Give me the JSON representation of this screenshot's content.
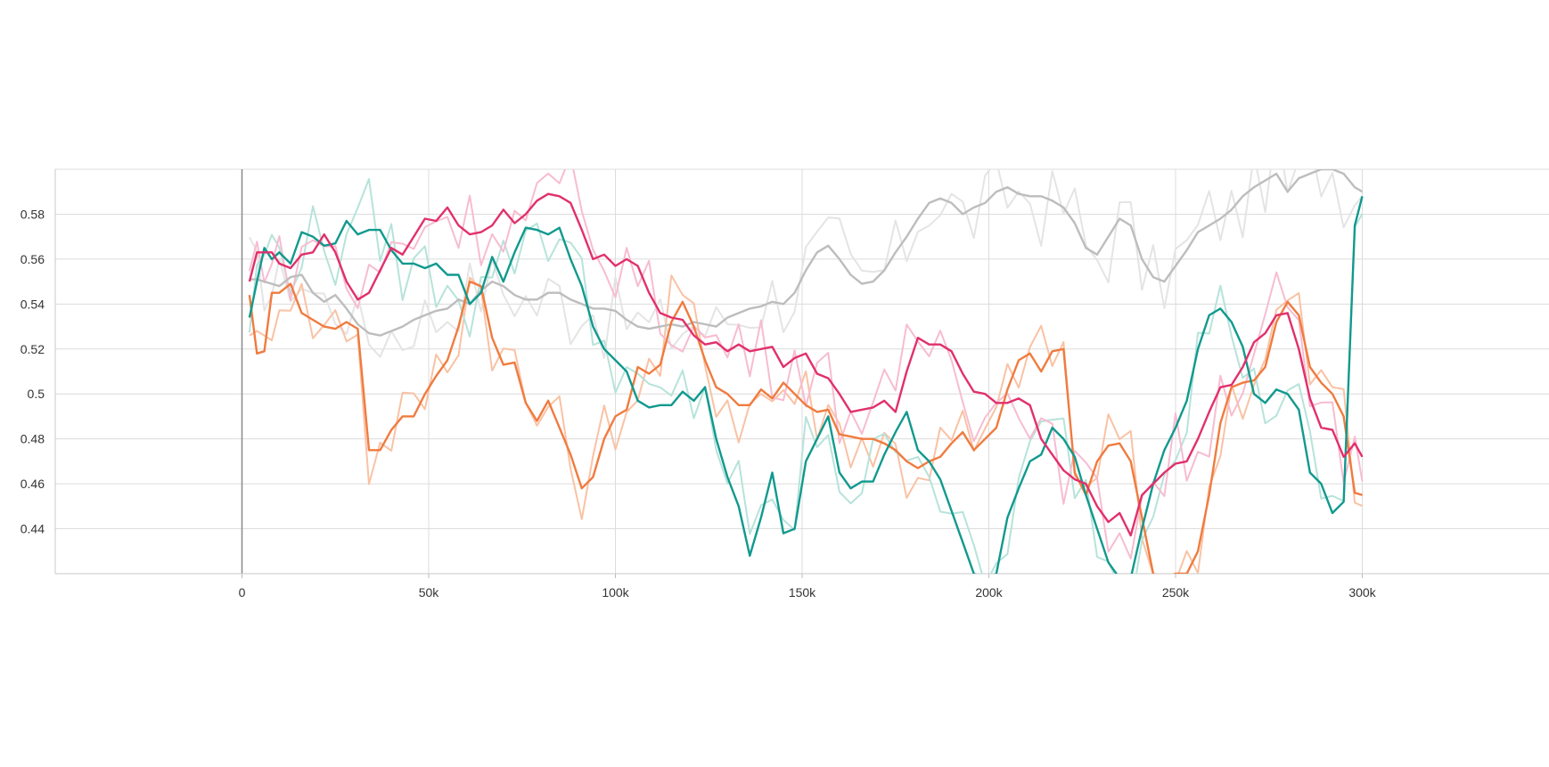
{
  "chart_data": {
    "type": "line",
    "title": "",
    "xlabel": "",
    "ylabel": "",
    "xlim": [
      -50000,
      350000
    ],
    "ylim": [
      0.42,
      0.6
    ],
    "x_ticks": [
      0,
      50000,
      100000,
      150000,
      200000,
      250000,
      300000
    ],
    "x_tick_labels": [
      "0",
      "50k",
      "100k",
      "150k",
      "200k",
      "250k",
      "300k"
    ],
    "y_ticks": [
      0.44,
      0.46,
      0.48,
      0.5,
      0.52,
      0.54,
      0.56,
      0.58
    ],
    "y_tick_labels": [
      "0.44",
      "0.46",
      "0.48",
      "0.5",
      "0.52",
      "0.54",
      "0.56",
      "0.58"
    ],
    "grid": true,
    "legend": "none",
    "x": [
      2000,
      4000,
      6000,
      8000,
      10000,
      13000,
      16000,
      19000,
      22000,
      25000,
      28000,
      31000,
      34000,
      37000,
      40000,
      43000,
      46000,
      49000,
      52000,
      55000,
      58000,
      61000,
      64000,
      67000,
      70000,
      73000,
      76000,
      79000,
      82000,
      85000,
      88000,
      91000,
      94000,
      97000,
      100000,
      103000,
      106000,
      109000,
      112000,
      115000,
      118000,
      121000,
      124000,
      127000,
      130000,
      133000,
      136000,
      139000,
      142000,
      145000,
      148000,
      151000,
      154000,
      157000,
      160000,
      163000,
      166000,
      169000,
      172000,
      175000,
      178000,
      181000,
      184000,
      187000,
      190000,
      193000,
      196000,
      199000,
      202000,
      205000,
      208000,
      211000,
      214000,
      217000,
      220000,
      223000,
      226000,
      229000,
      232000,
      235000,
      238000,
      241000,
      244000,
      247000,
      250000,
      253000,
      256000,
      259000,
      262000,
      265000,
      268000,
      271000,
      274000,
      277000,
      280000,
      283000,
      286000,
      289000,
      292000,
      295000,
      298000,
      300000
    ],
    "series": [
      {
        "color": "#bdbdbd",
        "raw_color": "#e4e4e4",
        "values": [
          0.551,
          0.551,
          0.55,
          0.549,
          0.548,
          0.552,
          0.553,
          0.545,
          0.541,
          0.544,
          0.538,
          0.531,
          0.527,
          0.526,
          0.528,
          0.53,
          0.533,
          0.535,
          0.537,
          0.538,
          0.542,
          0.54,
          0.546,
          0.55,
          0.548,
          0.544,
          0.542,
          0.542,
          0.545,
          0.545,
          0.542,
          0.54,
          0.538,
          0.538,
          0.537,
          0.533,
          0.53,
          0.529,
          0.53,
          0.531,
          0.53,
          0.532,
          0.531,
          0.53,
          0.534,
          0.536,
          0.538,
          0.539,
          0.541,
          0.54,
          0.545,
          0.555,
          0.563,
          0.566,
          0.56,
          0.553,
          0.549,
          0.55,
          0.555,
          0.563,
          0.57,
          0.578,
          0.585,
          0.587,
          0.585,
          0.58,
          0.583,
          0.585,
          0.59,
          0.592,
          0.589,
          0.588,
          0.588,
          0.586,
          0.583,
          0.576,
          0.565,
          0.562,
          0.57,
          0.578,
          0.575,
          0.56,
          0.552,
          0.55,
          0.557,
          0.564,
          0.572,
          0.575,
          0.578,
          0.582,
          0.588,
          0.592,
          0.595,
          0.598,
          0.59,
          0.596,
          0.598,
          0.6,
          0.6,
          0.598,
          0.592,
          0.59
        ]
      },
      {
        "color": "#f07b3f",
        "raw_color": "#f9c2a4",
        "values": [
          0.544,
          0.518,
          0.519,
          0.545,
          0.545,
          0.549,
          0.536,
          0.533,
          0.53,
          0.529,
          0.532,
          0.529,
          0.475,
          0.475,
          0.484,
          0.49,
          0.49,
          0.5,
          0.508,
          0.515,
          0.53,
          0.55,
          0.548,
          0.525,
          0.513,
          0.514,
          0.496,
          0.488,
          0.497,
          0.485,
          0.473,
          0.458,
          0.463,
          0.48,
          0.49,
          0.493,
          0.512,
          0.509,
          0.513,
          0.532,
          0.541,
          0.53,
          0.515,
          0.503,
          0.5,
          0.495,
          0.495,
          0.502,
          0.498,
          0.505,
          0.5,
          0.495,
          0.492,
          0.493,
          0.482,
          0.481,
          0.48,
          0.48,
          0.478,
          0.475,
          0.47,
          0.467,
          0.47,
          0.472,
          0.478,
          0.483,
          0.475,
          0.48,
          0.485,
          0.502,
          0.515,
          0.518,
          0.51,
          0.519,
          0.52,
          0.465,
          0.455,
          0.47,
          0.477,
          0.478,
          0.47,
          0.445,
          0.42,
          0.418,
          0.42,
          0.42,
          0.43,
          0.455,
          0.487,
          0.503,
          0.505,
          0.506,
          0.512,
          0.532,
          0.541,
          0.535,
          0.512,
          0.505,
          0.5,
          0.49,
          0.456,
          0.455
        ]
      },
      {
        "color": "#11998e",
        "raw_color": "#b6e3da",
        "values": [
          0.534,
          0.55,
          0.565,
          0.56,
          0.563,
          0.558,
          0.572,
          0.57,
          0.566,
          0.567,
          0.577,
          0.571,
          0.573,
          0.573,
          0.564,
          0.558,
          0.558,
          0.556,
          0.558,
          0.553,
          0.553,
          0.54,
          0.545,
          0.561,
          0.55,
          0.563,
          0.574,
          0.573,
          0.571,
          0.574,
          0.56,
          0.548,
          0.53,
          0.52,
          0.515,
          0.51,
          0.497,
          0.494,
          0.495,
          0.495,
          0.501,
          0.497,
          0.503,
          0.48,
          0.463,
          0.45,
          0.428,
          0.445,
          0.465,
          0.438,
          0.44,
          0.47,
          0.48,
          0.49,
          0.465,
          0.458,
          0.461,
          0.461,
          0.473,
          0.483,
          0.492,
          0.475,
          0.47,
          0.462,
          0.448,
          0.434,
          0.42,
          0.418,
          0.42,
          0.445,
          0.458,
          0.47,
          0.473,
          0.485,
          0.48,
          0.472,
          0.455,
          0.44,
          0.425,
          0.418,
          0.418,
          0.44,
          0.46,
          0.475,
          0.485,
          0.497,
          0.52,
          0.535,
          0.538,
          0.532,
          0.521,
          0.5,
          0.496,
          0.502,
          0.5,
          0.493,
          0.465,
          0.46,
          0.447,
          0.452,
          0.575,
          0.588
        ]
      },
      {
        "color": "#e1306c",
        "raw_color": "#f7bcd1",
        "values": [
          0.55,
          0.563,
          0.563,
          0.563,
          0.558,
          0.556,
          0.562,
          0.563,
          0.571,
          0.563,
          0.55,
          0.542,
          0.545,
          0.555,
          0.565,
          0.562,
          0.57,
          0.578,
          0.577,
          0.583,
          0.575,
          0.571,
          0.572,
          0.575,
          0.582,
          0.576,
          0.58,
          0.586,
          0.589,
          0.588,
          0.585,
          0.573,
          0.56,
          0.562,
          0.557,
          0.56,
          0.557,
          0.545,
          0.536,
          0.534,
          0.533,
          0.526,
          0.522,
          0.523,
          0.519,
          0.522,
          0.519,
          0.52,
          0.521,
          0.512,
          0.516,
          0.518,
          0.509,
          0.507,
          0.5,
          0.492,
          0.493,
          0.494,
          0.497,
          0.492,
          0.51,
          0.525,
          0.522,
          0.522,
          0.519,
          0.509,
          0.501,
          0.5,
          0.496,
          0.496,
          0.498,
          0.495,
          0.48,
          0.473,
          0.466,
          0.462,
          0.46,
          0.45,
          0.443,
          0.447,
          0.437,
          0.455,
          0.46,
          0.465,
          0.469,
          0.47,
          0.48,
          0.492,
          0.503,
          0.504,
          0.512,
          0.523,
          0.527,
          0.535,
          0.536,
          0.52,
          0.498,
          0.485,
          0.484,
          0.472,
          0.478,
          0.472
        ]
      }
    ]
  }
}
